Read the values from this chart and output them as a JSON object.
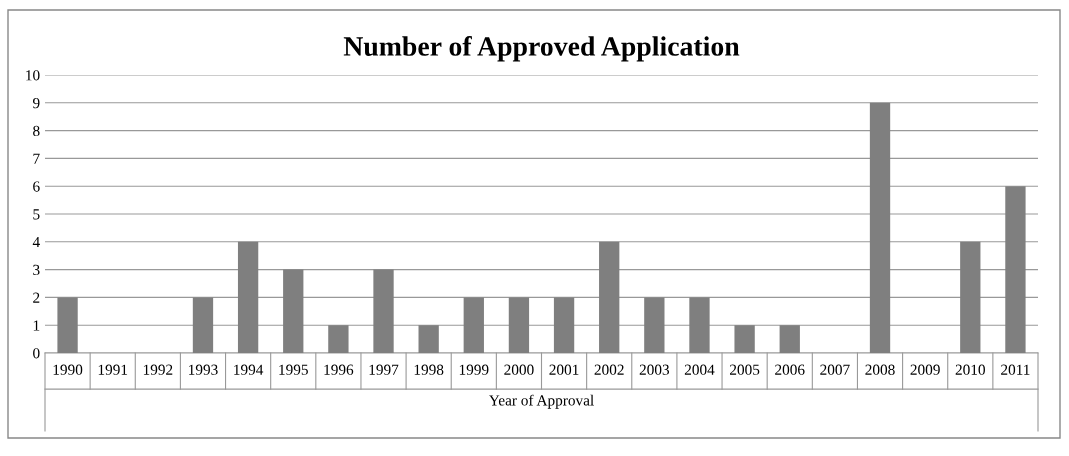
{
  "chart_data": {
    "type": "bar",
    "title": "Number of Approved Application",
    "xlabel": "Year of Approval",
    "categories": [
      "1990",
      "1991",
      "1992",
      "1993",
      "1994",
      "1995",
      "1996",
      "1997",
      "1998",
      "1999",
      "2000",
      "2001",
      "2002",
      "2003",
      "2004",
      "2005",
      "2006",
      "2007",
      "2008",
      "2009",
      "2010",
      "2011"
    ],
    "values": [
      2,
      0,
      0,
      2,
      4,
      3,
      1,
      3,
      1,
      2,
      2,
      2,
      4,
      2,
      2,
      1,
      1,
      0,
      9,
      0,
      4,
      6
    ],
    "color": "#7f7f7f",
    "ylim": [
      0,
      10
    ],
    "yticks": [
      0,
      1,
      2,
      3,
      4,
      5,
      6,
      7,
      8,
      9,
      10
    ],
    "grid": "y",
    "legend": false
  }
}
